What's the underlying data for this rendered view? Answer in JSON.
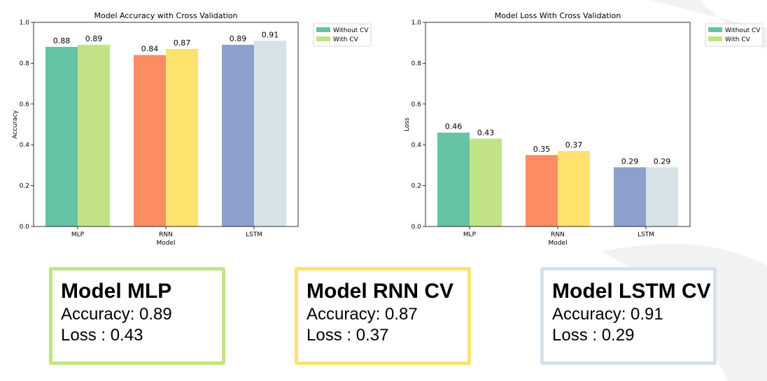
{
  "chart_data": [
    {
      "type": "bar",
      "title": "Model Accuracy with Cross Validation",
      "xlabel": "Model",
      "ylabel": "Accuracy",
      "categories": [
        "MLP",
        "RNN",
        "LSTM"
      ],
      "ylim": [
        0.0,
        1.0
      ],
      "yticks": [
        "0.0",
        "0.2",
        "0.4",
        "0.6",
        "0.8",
        "1.0"
      ],
      "legend_position": "upper right, outside plot",
      "series": [
        {
          "name": "Without CV",
          "values": [
            0.88,
            0.84,
            0.89
          ],
          "labels": [
            "0.88",
            "0.84",
            "0.89"
          ]
        },
        {
          "name": "With CV",
          "values": [
            0.89,
            0.87,
            0.91
          ],
          "labels": [
            "0.89",
            "0.87",
            "0.91"
          ]
        }
      ],
      "bar_colors": [
        [
          "#66c2a5",
          "#c1e385"
        ],
        [
          "#fc8d62",
          "#ffe26d"
        ],
        [
          "#8da0cb",
          "#d7e1e8"
        ]
      ],
      "legend_colors": [
        "#66c2a5",
        "#c1e385"
      ]
    },
    {
      "type": "bar",
      "title": "Model Loss With Cross Validation",
      "xlabel": "Model",
      "ylabel": "Loss",
      "categories": [
        "MLP",
        "RNN",
        "LSTM"
      ],
      "ylim": [
        0.0,
        1.0
      ],
      "yticks": [
        "0.0",
        "0.2",
        "0.4",
        "0.6",
        "0.8",
        "1.0"
      ],
      "legend_position": "upper right, outside plot",
      "series": [
        {
          "name": "Without CV",
          "values": [
            0.46,
            0.35,
            0.29
          ],
          "labels": [
            "0.46",
            "0.35",
            "0.29"
          ]
        },
        {
          "name": "With CV",
          "values": [
            0.43,
            0.37,
            0.29
          ],
          "labels": [
            "0.43",
            "0.37",
            "0.29"
          ]
        }
      ],
      "bar_colors": [
        [
          "#66c2a5",
          "#c1e385"
        ],
        [
          "#fc8d62",
          "#ffe26d"
        ],
        [
          "#8da0cb",
          "#d7e1e8"
        ]
      ],
      "legend_colors": [
        "#66c2a5",
        "#c1e385"
      ]
    }
  ],
  "cards": [
    {
      "title": "Model MLP",
      "accuracy": "Accuracy: 0.89",
      "loss": "Loss : 0.43",
      "border_color": "#c1e385"
    },
    {
      "title": "Model RNN CV",
      "accuracy": "Accuracy: 0.87",
      "loss": "Loss : 0.37",
      "border_color": "#ffe26d"
    },
    {
      "title": "Model LSTM CV",
      "accuracy": "Accuracy: 0.91",
      "loss": "Loss : 0.29",
      "border_color": "#d7e1e8"
    }
  ],
  "colors": {
    "background_shape": "#f1f2f2"
  }
}
